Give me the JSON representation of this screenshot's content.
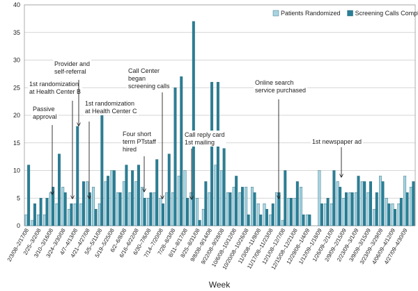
{
  "chart_data": {
    "type": "bar",
    "x_label": "Week",
    "ylim": [
      0,
      40
    ],
    "yticks": [
      0,
      5,
      10,
      15,
      20,
      25,
      30,
      35,
      40
    ],
    "grid": true,
    "legend": "top-right",
    "categories": [
      "2/3/08–2/17/08",
      null,
      "2/25–3/2/08",
      null,
      "3/10–3/16/08",
      null,
      "3/24–3/30/08",
      null,
      "4/7–4/13/08",
      null,
      "4/21–4/27/08",
      null,
      "5/5–5/11/08",
      null,
      "5/19–5/25/08",
      null,
      "6/2–6/8/08",
      null,
      "6/16–6/22/08",
      null,
      "6/30–7/6/08",
      null,
      "7/14–7/20/08",
      null,
      "7/28–8/3/08",
      null,
      "8/11–8/17/08",
      null,
      "8/25–8/31/08",
      null,
      "9/8/08–9/14/08",
      null,
      "9/22/08–9/28/08",
      null,
      "10/6/08–10/12/08",
      null,
      "10/20/08–10/26/08",
      null,
      "11/3/08–11/9/08",
      null,
      "11/17/08–11/23/08",
      null,
      "12/1/08–12/7/08",
      null,
      "12/15/08–12/21/08",
      null,
      "12/29/08–1/4/09",
      null,
      "1/12/09–1/18/09",
      null,
      "1/26/09–2/1/09",
      null,
      "2/9/09–2/15/09",
      null,
      "2/23/09–3/1/09",
      null,
      "3/9/09–3/15/09",
      null,
      "3/23/09–3/29/09",
      null,
      "4/06/09–4/12/09",
      null,
      "4/27/09–4/30/09",
      null
    ],
    "series": [
      {
        "name": "Patients Randomized",
        "color": "#a8d4e2",
        "values": [
          2,
          1,
          2,
          2,
          6,
          4,
          7,
          3,
          4,
          4,
          8,
          7,
          4,
          8,
          10,
          6,
          8,
          6,
          8,
          7,
          5,
          6,
          5,
          6,
          6,
          9,
          10,
          6,
          5,
          3,
          6,
          11,
          10,
          6,
          7,
          6,
          7,
          7,
          4,
          4,
          2,
          6,
          1,
          5,
          5,
          7,
          2,
          null,
          10,
          4,
          4,
          8,
          5,
          6,
          6,
          8,
          6,
          3,
          9,
          5,
          4,
          4,
          9,
          7
        ]
      },
      {
        "name": "Screening Calls Completed",
        "color": "#2a7f96",
        "values": [
          11,
          4,
          5,
          5,
          7,
          13,
          6,
          4,
          18,
          8,
          6,
          3,
          20,
          9,
          10,
          6,
          11,
          10,
          11,
          5,
          6,
          12,
          4,
          13,
          25,
          27,
          5,
          37,
          1,
          8,
          26,
          26,
          14,
          6,
          9,
          7,
          2,
          6,
          2,
          3,
          4,
          6,
          10,
          5,
          8,
          2,
          2,
          null,
          4,
          5,
          10,
          7,
          6,
          6,
          9,
          8,
          8,
          6,
          8,
          4,
          3,
          5,
          6,
          8
        ]
      }
    ],
    "annotations": [
      {
        "lines": [
          "Passive",
          "approval"
        ]
      },
      {
        "lines": [
          "1st randomization",
          "at Health Center B"
        ]
      },
      {
        "lines": [
          "Provider and",
          "self-referral"
        ]
      },
      {
        "lines": [
          "1st randomization",
          "at Health Center C"
        ]
      },
      {
        "lines": [
          "Call Center",
          "began",
          "screening calls"
        ]
      },
      {
        "lines": [
          "Four short",
          "term PTstaff",
          "hired"
        ]
      },
      {
        "lines": [
          "Call reply card",
          "1st mailing"
        ]
      },
      {
        "lines": [
          "Online search",
          "service purchased"
        ]
      },
      {
        "lines": [
          "1st newspaper ad"
        ]
      }
    ]
  }
}
